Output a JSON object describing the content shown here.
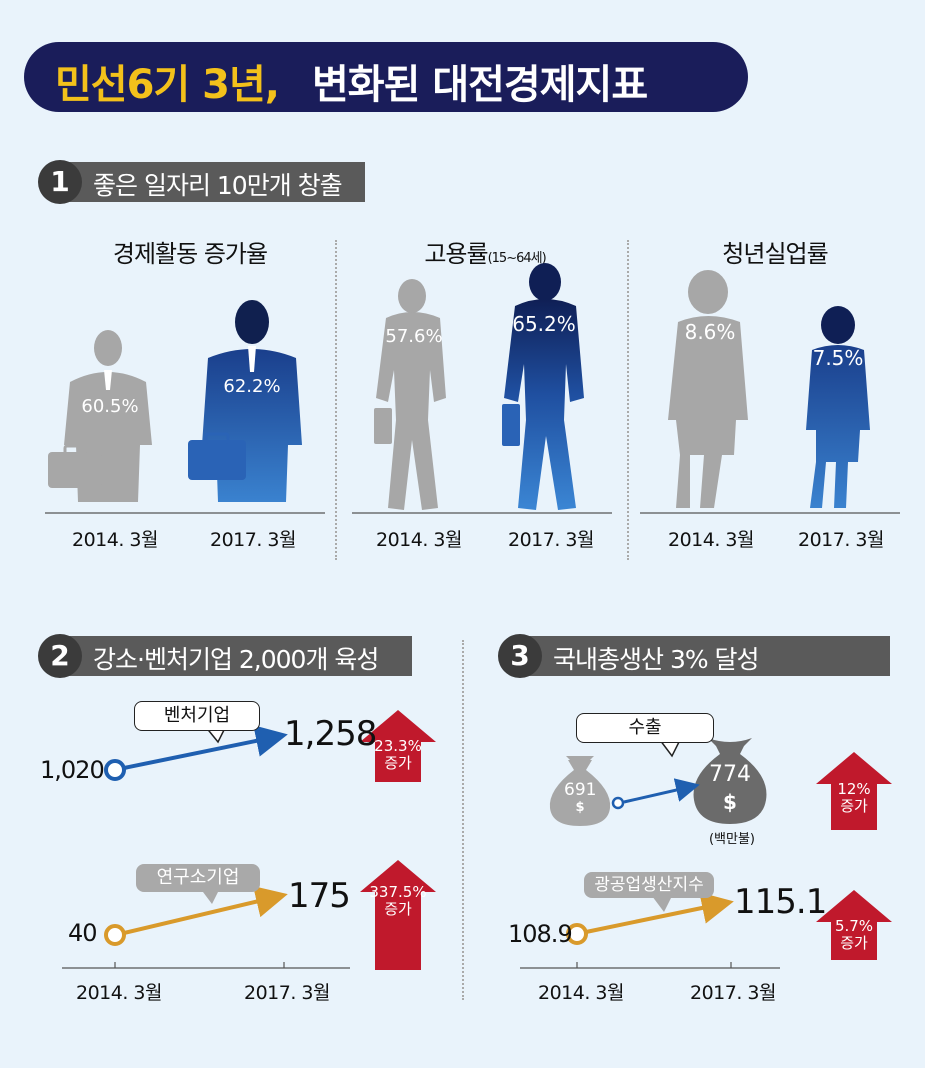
{
  "title": {
    "highlight": "민선6기 3년,",
    "rest": "변화된 대전경제지표"
  },
  "section1": {
    "num": "1",
    "label": "좋은 일자리 10만개 창출",
    "columns": [
      {
        "title": "경제활동 증가율",
        "title_small": "",
        "before": "60.5%",
        "after": "62.2%",
        "before_date": "2014. 3월",
        "after_date": "2017. 3월"
      },
      {
        "title": "고용률",
        "title_small": "(15~64세)",
        "before": "57.6%",
        "after": "65.2%",
        "before_date": "2014. 3월",
        "after_date": "2017. 3월"
      },
      {
        "title": "청년실업률",
        "title_small": "",
        "before": "8.6%",
        "after": "7.5%",
        "before_date": "2014. 3월",
        "after_date": "2017. 3월"
      }
    ]
  },
  "section2": {
    "num": "2",
    "label": "강소·벤처기업 2,000개 육성",
    "venture": {
      "label": "벤처기업",
      "start": "1,020",
      "end": "1,258",
      "increase_pct": "23.3%",
      "increase_word": "증가"
    },
    "research": {
      "label": "연구소기업",
      "start": "40",
      "end": "175",
      "increase_pct": "337.5%",
      "increase_word": "증가"
    },
    "dates": [
      "2014. 3월",
      "2017. 3월"
    ]
  },
  "section3": {
    "num": "3",
    "label": "국내총생산 3% 달성",
    "exports": {
      "label": "수출",
      "start": "691",
      "end": "774",
      "currency": "$",
      "unit": "(백만불)",
      "increase_pct": "12%",
      "increase_word": "증가"
    },
    "industrial": {
      "label": "광공업생산지수",
      "start": "108.9",
      "end": "115.1",
      "increase_pct": "5.7%",
      "increase_word": "증가"
    },
    "dates": [
      "2014. 3월",
      "2017. 3월"
    ]
  },
  "colors": {
    "navy": "#1a1d5a",
    "yellow": "#f3c11b",
    "blue": "#1f5fb0",
    "orange": "#d99a2b",
    "red": "#c0192c",
    "gray": "#a9a9a9"
  }
}
